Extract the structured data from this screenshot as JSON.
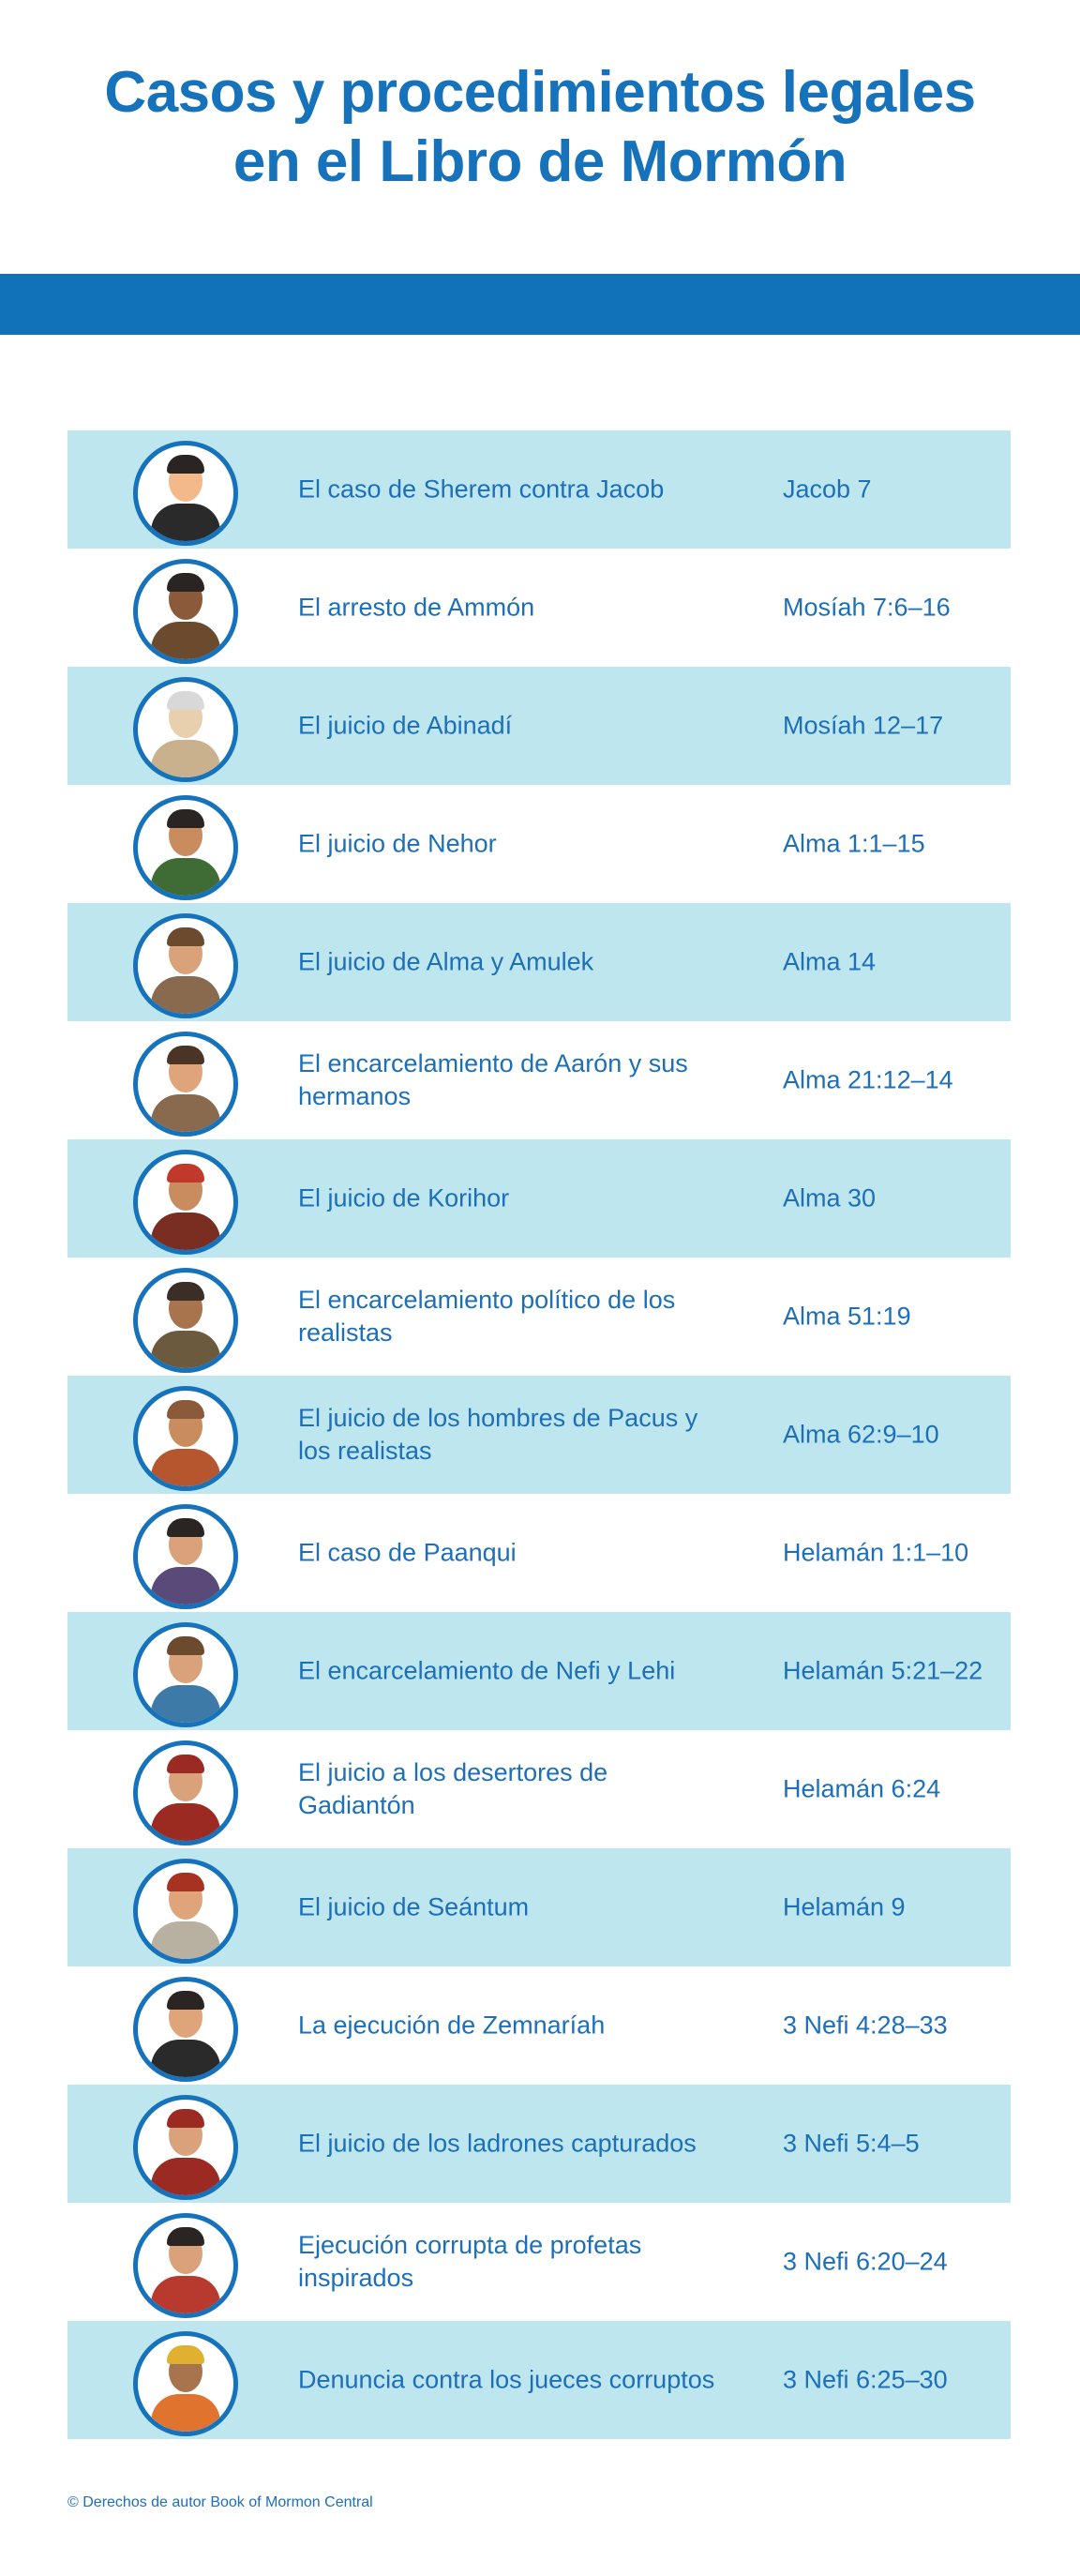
{
  "header": {
    "title_line1": "Casos y procedimientos legales",
    "title_line2": "en el Libro de Mormón"
  },
  "colors": {
    "accent": "#1172ba",
    "row_shade": "#bee6ee",
    "text": "#1d6fb8"
  },
  "rows": [
    {
      "event": "El caso de Sherem contra Jacob",
      "ref": "Jacob 7",
      "icon": "portrait-sherem-icon",
      "skin": "#f3b98a",
      "hair": "#2a2522",
      "cloth": "#2a2a2a"
    },
    {
      "event": "El arresto de Ammón",
      "ref": "Mosíah 7:6–16",
      "icon": "portrait-ammon-icon",
      "skin": "#8a5a3a",
      "hair": "#2a2522",
      "cloth": "#6b4a2e"
    },
    {
      "event": "El juicio de Abinadí",
      "ref": "Mosíah 12–17",
      "icon": "portrait-abinadi-icon",
      "skin": "#e8cfae",
      "hair": "#d8d8d8",
      "cloth": "#c9b18e"
    },
    {
      "event": "El juicio de Nehor",
      "ref": "Alma 1:1–15",
      "icon": "portrait-nehor-icon",
      "skin": "#c98c5e",
      "hair": "#2a2522",
      "cloth": "#3f6b35"
    },
    {
      "event": "El juicio de Alma y Amulek",
      "ref": "Alma 14",
      "icon": "portrait-alma-amulek-icon",
      "skin": "#d9a27a",
      "hair": "#6b4a2e",
      "cloth": "#8a6a4e"
    },
    {
      "event": "El encarcelamiento de Aarón y sus hermanos",
      "ref": "Alma 21:12–14",
      "icon": "portrait-aaron-icon",
      "skin": "#e0a47a",
      "hair": "#4a3426",
      "cloth": "#8a6a4e"
    },
    {
      "event": "El juicio de Korihor",
      "ref": "Alma 30",
      "icon": "portrait-korihor-icon",
      "skin": "#c98c5e",
      "hair": "#c0392b",
      "cloth": "#7a2e22"
    },
    {
      "event": "El encarcelamiento político de los realistas",
      "ref": "Alma 51:19",
      "icon": "portrait-realistas-icon",
      "skin": "#a8744e",
      "hair": "#3a2e26",
      "cloth": "#6b5a3e"
    },
    {
      "event": "El juicio de los hombres de Pacus y los realistas",
      "ref": "Alma 62:9–10",
      "icon": "portrait-pacus-icon",
      "skin": "#c98c5e",
      "hair": "#8a5a3a",
      "cloth": "#b5562e"
    },
    {
      "event": "El caso de Paanqui",
      "ref": "Helamán 1:1–10",
      "icon": "portrait-paanqui-icon",
      "skin": "#d9a27a",
      "hair": "#2a2522",
      "cloth": "#5a4a7a"
    },
    {
      "event": "El encarcelamiento de Nefi y Lehi",
      "ref": "Helamán 5:21–22",
      "icon": "portrait-nefi-lehi-icon",
      "skin": "#d9a27a",
      "hair": "#6b4a2e",
      "cloth": "#3d7aa8"
    },
    {
      "event": "El juicio a los desertores de Gadiantón",
      "ref": "Helamán 6:24",
      "icon": "portrait-gadianton-icon",
      "skin": "#d9a27a",
      "hair": "#9b2a22",
      "cloth": "#9b2a22"
    },
    {
      "event": "El juicio de Seántum",
      "ref": "Helamán 9",
      "icon": "portrait-seantum-icon",
      "skin": "#e0a47a",
      "hair": "#a83222",
      "cloth": "#b8b0a0"
    },
    {
      "event": "La ejecución de Zemnaríah",
      "ref": "3 Nefi 4:28–33",
      "icon": "portrait-zemnariah-icon",
      "skin": "#e0a47a",
      "hair": "#2a2522",
      "cloth": "#2a2a2a"
    },
    {
      "event": "El juicio de los ladrones capturados",
      "ref": "3 Nefi 5:4–5",
      "icon": "portrait-ladrones-icon",
      "skin": "#d9a27a",
      "hair": "#9b2a22",
      "cloth": "#9b2a22"
    },
    {
      "event": "Ejecución corrupta de profetas inspirados",
      "ref": "3 Nefi 6:20–24",
      "icon": "portrait-profetas-icon",
      "skin": "#d9a27a",
      "hair": "#2a2522",
      "cloth": "#b83a2e"
    },
    {
      "event": "Denuncia contra los jueces corruptos",
      "ref": "3 Nefi 6:25–30",
      "icon": "portrait-jueces-icon",
      "skin": "#a8744e",
      "hair": "#e0b030",
      "cloth": "#e0742e"
    }
  ],
  "footer": {
    "copyright": "© Derechos de autor Book of Mormon Central"
  }
}
